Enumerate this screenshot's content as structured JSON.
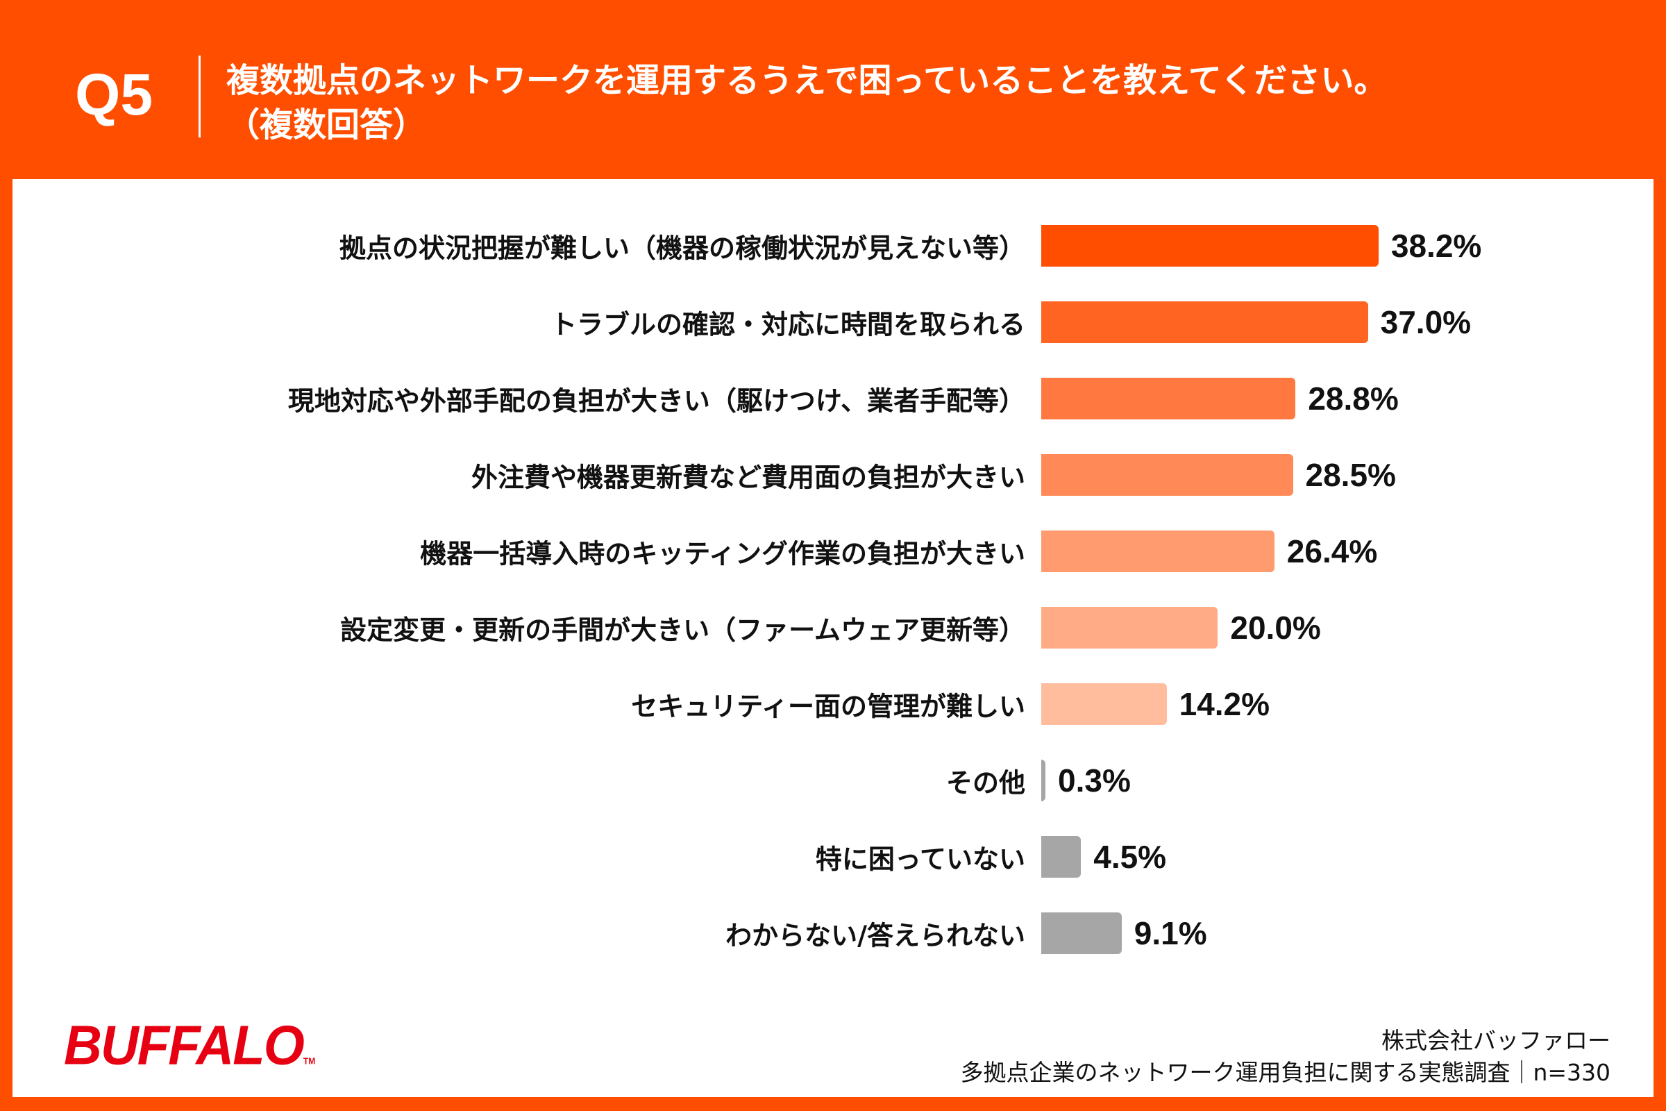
{
  "header": {
    "question_number": "Q5",
    "title_line1": "複数拠点のネットワークを運用するうえで困っていることを教えてください。",
    "title_line2": "（複数回答）"
  },
  "chart_data": {
    "type": "bar",
    "orientation": "horizontal",
    "categories": [
      "拠点の状況把握が難しい（機器の稼働状況が見えない等）",
      "トラブルの確認・対応に時間を取られる",
      "現地対応や外部手配の負担が大きい（駆けつけ、業者手配等）",
      "外注費や機器更新費など費用面の負担が大きい",
      "機器一括導入時のキッティング作業の負担が大きい",
      "設定変更・更新の手間が大きい（ファームウェア更新等）",
      "セキュリティー面の管理が難しい",
      "その他",
      "特に困っていない",
      "わからない/答えられない"
    ],
    "values": [
      38.2,
      37.0,
      28.8,
      28.5,
      26.4,
      20.0,
      14.2,
      0.3,
      4.5,
      9.1
    ],
    "value_labels": [
      "38.2%",
      "37.0%",
      "28.8%",
      "28.5%",
      "26.4%",
      "20.0%",
      "14.2%",
      "0.3%",
      "4.5%",
      "9.1%"
    ],
    "colors": [
      "#ff4e00",
      "#ff6422",
      "#ff7840",
      "#ff8a57",
      "#ff9b6e",
      "#ffab86",
      "#ffbd9e",
      "#a6a6a6",
      "#a6a6a6",
      "#a6a6a6"
    ],
    "unit": "%",
    "grid": false,
    "legend": "none"
  },
  "footer": {
    "logo": "BUFFALO",
    "company": "株式会社バッファロー",
    "survey": "多拠点企業のネットワーク運用負担に関する実態調査｜n=330"
  },
  "colors": {
    "accent": "#ff4e00",
    "logo": "#e60012"
  }
}
